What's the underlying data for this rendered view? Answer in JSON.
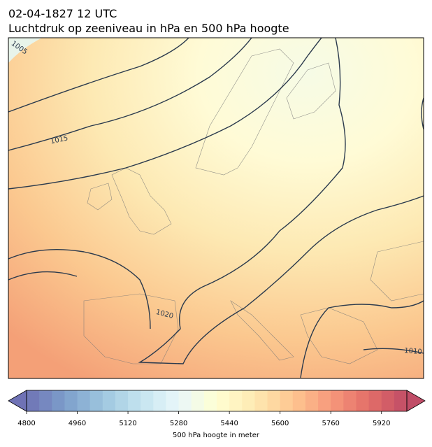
{
  "header": {
    "line1": "02-04-1827 12 UTC",
    "line2": "Luchtdruk op zeeniveau in hPa en 500 hPa hoogte"
  },
  "contour_labels": [
    "1005",
    "1015",
    "1020",
    "1010"
  ],
  "colorbar": {
    "label": "500 hPa hoogte in meter",
    "lim": [
      4800,
      6000
    ],
    "ticks": [
      4800,
      4960,
      5120,
      5280,
      5440,
      5600,
      5760,
      5920
    ]
  }
}
